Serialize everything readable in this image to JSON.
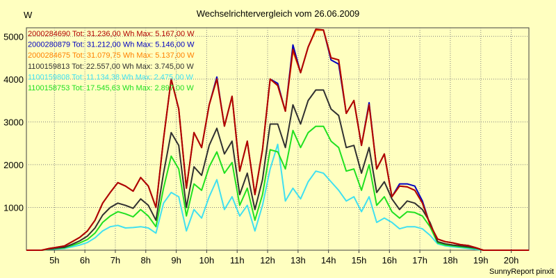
{
  "chart_data": {
    "type": "line",
    "title": "Wechselrichtervergleich vom 26.06.2009",
    "ylabel": "W",
    "xlabel": "",
    "footer": "SunnyReport pinxit",
    "xlim": [
      4.08,
      20.58
    ],
    "ylim": [
      0,
      5200
    ],
    "xticks": [
      5,
      6,
      7,
      8,
      9,
      10,
      11,
      12,
      13,
      14,
      15,
      16,
      17,
      18,
      19,
      20
    ],
    "xtick_labels": [
      "5h",
      "6h",
      "7h",
      "8h",
      "9h",
      "10h",
      "11h",
      "12h",
      "13h",
      "14h",
      "15h",
      "16h",
      "17h",
      "18h",
      "19h",
      "20h"
    ],
    "yticks": [
      1000,
      2000,
      3000,
      4000,
      5000
    ],
    "ytick_labels": [
      "1000",
      "2000",
      "3000",
      "4000",
      "5000"
    ],
    "grid": true,
    "legend_position": "top-left",
    "x": [
      4.083,
      4.333,
      4.583,
      4.833,
      5.083,
      5.333,
      5.583,
      5.833,
      6.083,
      6.333,
      6.583,
      6.833,
      7.083,
      7.333,
      7.583,
      7.833,
      8.083,
      8.333,
      8.583,
      8.833,
      9.083,
      9.333,
      9.583,
      9.833,
      10.083,
      10.333,
      10.583,
      10.833,
      11.083,
      11.333,
      11.583,
      11.833,
      12.083,
      12.333,
      12.583,
      12.833,
      13.083,
      13.333,
      13.583,
      13.833,
      14.083,
      14.333,
      14.583,
      14.833,
      15.083,
      15.333,
      15.583,
      15.833,
      16.083,
      16.333,
      16.583,
      16.833,
      17.083,
      17.333,
      17.583,
      17.833,
      18.083,
      18.333,
      18.583,
      18.833,
      19.083,
      19.333,
      19.583,
      19.833,
      20.083,
      20.333,
      20.583
    ],
    "series": [
      {
        "name": "2000284690",
        "label": "2000284690 Tot: 31.236,00 Wh Max: 5.167,00 W",
        "color": "#B00000",
        "values": [
          0,
          0,
          0,
          40,
          70,
          100,
          200,
          300,
          450,
          700,
          1100,
          1350,
          1580,
          1500,
          1380,
          1700,
          1500,
          1000,
          2600,
          4000,
          3300,
          1450,
          2750,
          2400,
          3400,
          4000,
          2900,
          3600,
          1850,
          2550,
          1300,
          2350,
          4000,
          3850,
          3250,
          4700,
          4150,
          4750,
          5167,
          5150,
          4500,
          4450,
          3200,
          3500,
          2450,
          3400,
          1900,
          2250,
          1250,
          1500,
          1480,
          1400,
          1100,
          600,
          260,
          200,
          170,
          130,
          110,
          60,
          0,
          0,
          0,
          0,
          0,
          0,
          0
        ]
      },
      {
        "name": "2000280879",
        "label": "2000280879 Tot: 31.212,00 Wh Max: 5.146,00 W",
        "color": "#0000C0",
        "values": [
          0,
          0,
          0,
          40,
          70,
          100,
          200,
          300,
          450,
          700,
          1100,
          1350,
          1580,
          1500,
          1380,
          1700,
          1500,
          1000,
          2600,
          4000,
          3300,
          1450,
          2750,
          2400,
          3400,
          4050,
          2900,
          3600,
          1850,
          2550,
          1300,
          2350,
          4000,
          3900,
          3250,
          4800,
          4150,
          4750,
          5146,
          5150,
          4450,
          4350,
          3200,
          3500,
          2450,
          3450,
          1900,
          2250,
          1250,
          1550,
          1550,
          1500,
          1150,
          600,
          260,
          200,
          170,
          130,
          110,
          60,
          0,
          0,
          0,
          0,
          0,
          0,
          0
        ]
      },
      {
        "name": "2000284675",
        "label": "2000284675 Tot: 31.079,75 Wh Max: 5.137,00 W",
        "color": "#FF8000",
        "values": [
          0,
          0,
          0,
          40,
          70,
          100,
          200,
          300,
          450,
          700,
          1100,
          1350,
          1580,
          1500,
          1380,
          1700,
          1500,
          1000,
          2600,
          4000,
          3300,
          1450,
          2750,
          2400,
          3400,
          4000,
          2900,
          3600,
          1850,
          2550,
          1300,
          2350,
          4000,
          3850,
          3250,
          4650,
          4150,
          4750,
          5137,
          5150,
          4500,
          4450,
          3200,
          3500,
          2450,
          3400,
          1900,
          2250,
          1250,
          1500,
          1480,
          1400,
          1100,
          600,
          260,
          200,
          170,
          130,
          110,
          60,
          0,
          0,
          0,
          0,
          0,
          0,
          0
        ]
      },
      {
        "name": "1100159813",
        "label": "1100159813 Tot: 22.557,00 Wh Max: 3.745,00 W",
        "color": "#303030",
        "values": [
          0,
          0,
          0,
          30,
          50,
          70,
          140,
          220,
          330,
          520,
          820,
          1000,
          1100,
          1050,
          980,
          1200,
          1050,
          700,
          1800,
          2750,
          2450,
          1000,
          1950,
          1750,
          2450,
          2850,
          2250,
          2550,
          1300,
          1800,
          950,
          1650,
          2950,
          2950,
          2400,
          3400,
          2950,
          3500,
          3745,
          3745,
          3300,
          3150,
          2400,
          2450,
          1800,
          2400,
          1350,
          1600,
          1200,
          950,
          1150,
          1100,
          950,
          650,
          200,
          150,
          120,
          100,
          80,
          50,
          0,
          0,
          0,
          0,
          0,
          0,
          0
        ]
      },
      {
        "name": "1100159808",
        "label": "1100159808 Tot: 11.134,38 Wh Max: 2.475,00 W",
        "color": "#40E0F0",
        "values": [
          0,
          0,
          0,
          20,
          30,
          40,
          80,
          120,
          180,
          290,
          450,
          550,
          580,
          520,
          530,
          550,
          520,
          400,
          1100,
          1350,
          1250,
          450,
          950,
          750,
          1250,
          1650,
          950,
          1250,
          800,
          1050,
          450,
          1050,
          1900,
          2475,
          1150,
          1450,
          1200,
          1600,
          1850,
          1800,
          1600,
          1400,
          1150,
          1250,
          900,
          1250,
          650,
          750,
          650,
          500,
          550,
          550,
          500,
          350,
          150,
          100,
          80,
          60,
          40,
          20,
          0,
          0,
          0,
          0,
          0,
          0,
          0
        ]
      },
      {
        "name": "1100158753",
        "label": "1100158753 Tot: 17.545,63 Wh Max: 2.897,00 W",
        "color": "#20E020",
        "values": [
          0,
          0,
          0,
          25,
          40,
          55,
          110,
          170,
          250,
          400,
          650,
          800,
          900,
          850,
          780,
          950,
          800,
          550,
          1450,
          2200,
          1900,
          800,
          1550,
          1400,
          1950,
          2300,
          1800,
          2050,
          1050,
          1450,
          700,
          1300,
          2350,
          2300,
          1900,
          2800,
          2400,
          2750,
          2897,
          2897,
          2550,
          2400,
          1850,
          1900,
          1400,
          2000,
          1050,
          1250,
          900,
          750,
          900,
          880,
          800,
          550,
          170,
          120,
          100,
          80,
          60,
          40,
          0,
          0,
          0,
          0,
          0,
          0,
          0
        ]
      }
    ]
  }
}
